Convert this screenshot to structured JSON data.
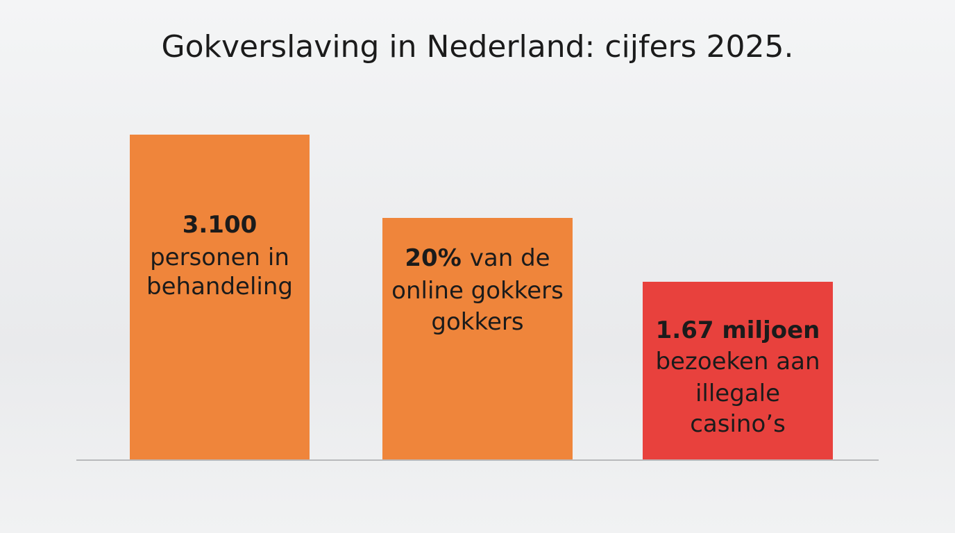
{
  "title": "Gokverslaving in Nederland: cijfers 2025.",
  "bars": [
    {
      "color": "#ef853b",
      "lines": [
        [
          {
            "text": "3.100",
            "bold": true
          }
        ],
        [
          {
            "text": "personen in",
            "bold": false
          }
        ],
        [
          {
            "text": "behandeling",
            "bold": false
          }
        ]
      ]
    },
    {
      "color": "#ef853b",
      "lines": [
        [
          {
            "text": "20%",
            "bold": true
          },
          {
            "text": "van de",
            "bold": false
          }
        ],
        [
          {
            "text": "online gokkers",
            "bold": false
          }
        ],
        [
          {
            "text": "gokkers",
            "bold": false
          }
        ]
      ]
    },
    {
      "color": "#e8413d",
      "lines": [
        [
          {
            "text": "1.67 miljoen",
            "bold": true
          }
        ],
        [
          {
            "text": "bezoeken aan",
            "bold": false
          }
        ],
        [
          {
            "text": "illegale",
            "bold": false
          }
        ],
        [
          {
            "text": "casino’s",
            "bold": false
          }
        ]
      ]
    }
  ]
}
